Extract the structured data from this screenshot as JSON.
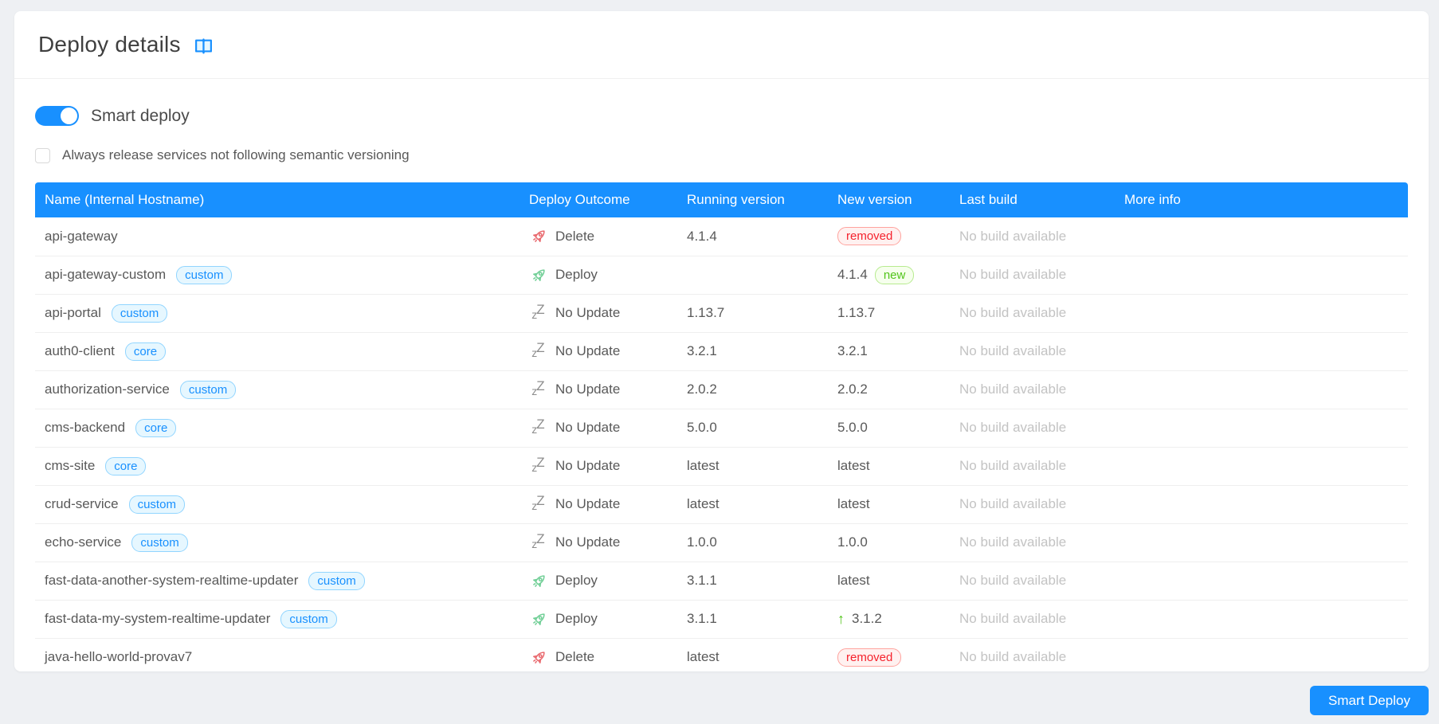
{
  "page": {
    "title": "Deploy details"
  },
  "controls": {
    "smart_deploy_toggle_label": "Smart deploy",
    "smart_deploy_toggle_on": true,
    "semver_checkbox_label": "Always release services not following semantic versioning",
    "semver_checkbox_checked": false,
    "smart_deploy_button_label": "Smart Deploy"
  },
  "icons": {
    "header_icon": "open-book-icon",
    "deploy_icon": "rocket-icon",
    "delete_icon": "rocket-icon",
    "no_update_icon": "sleep-zz-icon",
    "upgrade_icon": "arrow-up-icon"
  },
  "colors": {
    "accent_blue": "#1890ff",
    "page_background": "#eef0f3",
    "table_header_bg": "#1890ff",
    "tag_blue_text": "#1890ff",
    "tag_blue_bg": "#e6f7ff",
    "tag_blue_border": "#91d5ff",
    "tag_removed_text": "#f5222d",
    "tag_removed_bg": "#fff1f0",
    "tag_removed_border": "#ffa39e",
    "tag_new_text": "#52c41a",
    "tag_new_bg": "#f6ffed",
    "tag_new_border": "#b7eb8f",
    "delete_rocket": "#e96a6f",
    "deploy_rocket": "#72cf97",
    "upgrade_arrow": "#52c41a",
    "muted_text": "#c3c3c3"
  },
  "table": {
    "columns": [
      "Name (Internal Hostname)",
      "Deploy Outcome",
      "Running version",
      "New version",
      "Last build",
      "More info"
    ],
    "rows": [
      {
        "name": "api-gateway",
        "tag": "",
        "outcome": "Delete",
        "outcome_type": "delete",
        "running": "4.1.4",
        "new_text": "",
        "new_tag": "removed",
        "new_arrow": false,
        "last_build": "No build available",
        "more_info": ""
      },
      {
        "name": "api-gateway-custom",
        "tag": "custom",
        "outcome": "Deploy",
        "outcome_type": "deploy",
        "running": "",
        "new_text": "4.1.4",
        "new_tag": "new",
        "new_arrow": false,
        "last_build": "No build available",
        "more_info": ""
      },
      {
        "name": "api-portal",
        "tag": "custom",
        "outcome": "No Update",
        "outcome_type": "noupdate",
        "running": "1.13.7",
        "new_text": "1.13.7",
        "new_tag": "",
        "new_arrow": false,
        "last_build": "No build available",
        "more_info": ""
      },
      {
        "name": "auth0-client",
        "tag": "core",
        "outcome": "No Update",
        "outcome_type": "noupdate",
        "running": "3.2.1",
        "new_text": "3.2.1",
        "new_tag": "",
        "new_arrow": false,
        "last_build": "No build available",
        "more_info": ""
      },
      {
        "name": "authorization-service",
        "tag": "custom",
        "outcome": "No Update",
        "outcome_type": "noupdate",
        "running": "2.0.2",
        "new_text": "2.0.2",
        "new_tag": "",
        "new_arrow": false,
        "last_build": "No build available",
        "more_info": ""
      },
      {
        "name": "cms-backend",
        "tag": "core",
        "outcome": "No Update",
        "outcome_type": "noupdate",
        "running": "5.0.0",
        "new_text": "5.0.0",
        "new_tag": "",
        "new_arrow": false,
        "last_build": "No build available",
        "more_info": ""
      },
      {
        "name": "cms-site",
        "tag": "core",
        "outcome": "No Update",
        "outcome_type": "noupdate",
        "running": "latest",
        "new_text": "latest",
        "new_tag": "",
        "new_arrow": false,
        "last_build": "No build available",
        "more_info": ""
      },
      {
        "name": "crud-service",
        "tag": "custom",
        "outcome": "No Update",
        "outcome_type": "noupdate",
        "running": "latest",
        "new_text": "latest",
        "new_tag": "",
        "new_arrow": false,
        "last_build": "No build available",
        "more_info": ""
      },
      {
        "name": "echo-service",
        "tag": "custom",
        "outcome": "No Update",
        "outcome_type": "noupdate",
        "running": "1.0.0",
        "new_text": "1.0.0",
        "new_tag": "",
        "new_arrow": false,
        "last_build": "No build available",
        "more_info": ""
      },
      {
        "name": "fast-data-another-system-realtime-updater",
        "tag": "custom",
        "outcome": "Deploy",
        "outcome_type": "deploy",
        "running": "3.1.1",
        "new_text": "latest",
        "new_tag": "",
        "new_arrow": false,
        "last_build": "No build available",
        "more_info": ""
      },
      {
        "name": "fast-data-my-system-realtime-updater",
        "tag": "custom",
        "outcome": "Deploy",
        "outcome_type": "deploy",
        "running": "3.1.1",
        "new_text": "3.1.2",
        "new_tag": "",
        "new_arrow": true,
        "last_build": "No build available",
        "more_info": ""
      },
      {
        "name": "java-hello-world-provav7",
        "tag": "",
        "outcome": "Delete",
        "outcome_type": "delete",
        "running": "latest",
        "new_text": "",
        "new_tag": "removed",
        "new_arrow": false,
        "last_build": "No build available",
        "more_info": ""
      }
    ]
  }
}
